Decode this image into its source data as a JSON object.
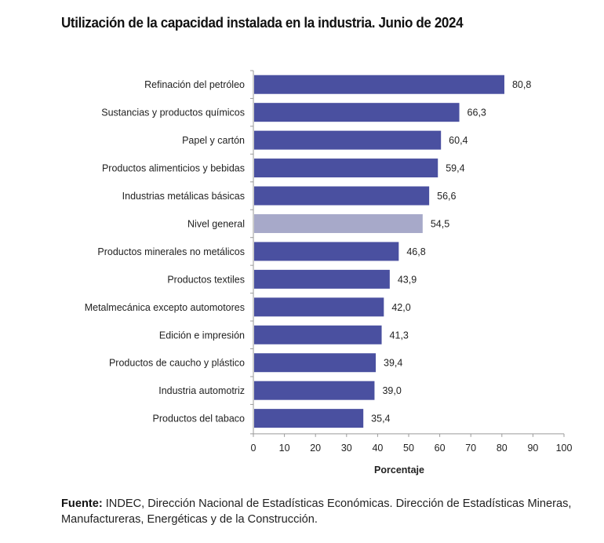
{
  "chart_data": {
    "type": "bar",
    "orientation": "horizontal",
    "title": "Utilización de la capacidad instalada en la industria. Junio de 2024",
    "xlabel": "Porcentaje",
    "ylabel": "",
    "xlim": [
      0,
      100
    ],
    "xticks": [
      "0",
      "10",
      "20",
      "30",
      "40",
      "50",
      "60",
      "70",
      "80",
      "90",
      "100"
    ],
    "grid": false,
    "categories": [
      "Refinación del petróleo",
      "Sustancias y productos químicos",
      "Papel y cartón",
      "Productos alimenticios y bebidas",
      "Industrias metálicas básicas",
      "Nivel general",
      "Productos minerales no metálicos",
      "Productos textiles",
      "Metalmecánica excepto automotores",
      "Edición e impresión",
      "Productos de caucho y plástico",
      "Industria automotriz",
      "Productos del tabaco"
    ],
    "values": [
      80.8,
      66.3,
      60.4,
      59.4,
      56.6,
      54.5,
      46.8,
      43.9,
      42.0,
      41.3,
      39.4,
      39.0,
      35.4
    ],
    "value_labels": [
      "80,8",
      "66,3",
      "60,4",
      "59,4",
      "56,6",
      "54,5",
      "46,8",
      "43,9",
      "42,0",
      "41,3",
      "39,4",
      "39,0",
      "35,4"
    ],
    "highlight_category": "Nivel general",
    "colors": {
      "bar": "#4a50a0",
      "highlight": "#a7a9c9",
      "axis": "#9a9a9a"
    }
  },
  "source": {
    "label": "Fuente:",
    "text": " INDEC, Dirección Nacional de Estadísticas Económicas. Dirección de Estadísticas Mineras, Manufactureras, Energéticas y de la Construcción."
  }
}
